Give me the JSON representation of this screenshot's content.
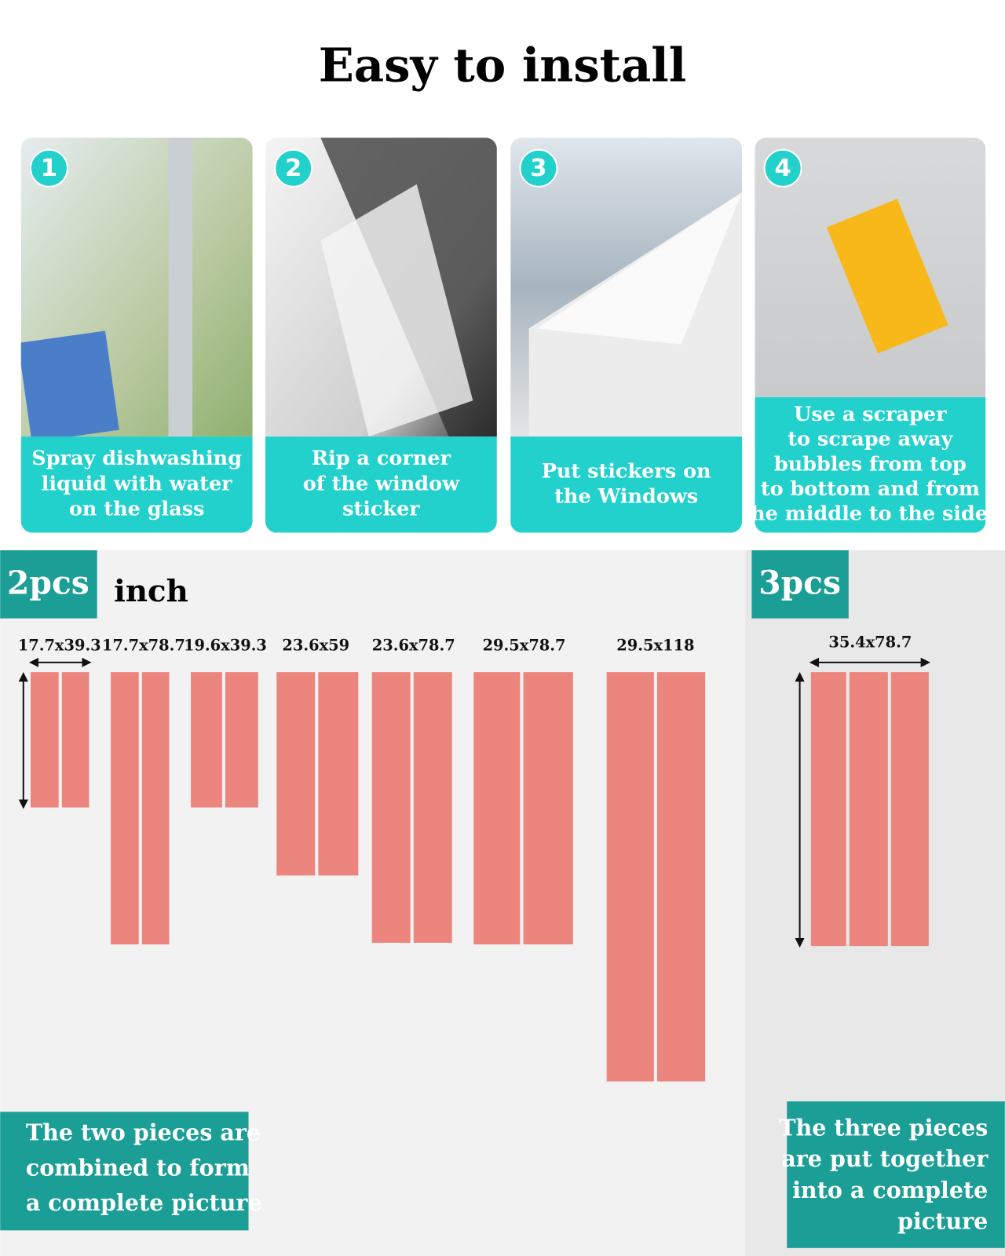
{
  "title": "Easy to install",
  "steps": [
    {
      "number": "1",
      "caption": [
        "Spray dishwashing",
        "liquid with water",
        "on the glass"
      ]
    },
    {
      "number": "2",
      "caption": [
        "Rip a corner",
        "of the window",
        "sticker"
      ]
    },
    {
      "number": "3",
      "caption": [
        "Put stickers on",
        "the Windows"
      ]
    },
    {
      "number": "4",
      "caption": [
        "Use a scraper",
        "to scrape away",
        "bubbles from top",
        "to bottom and from",
        "the middle to the sides"
      ]
    }
  ],
  "two_piece": {
    "label": "2pcs",
    "unit": "inch",
    "sizes": [
      "17.7x39.3",
      "17.7x78.7",
      "19.6x39.3",
      "23.6x59",
      "23.6x78.7",
      "29.5x78.7",
      "29.5x118"
    ],
    "caption": [
      "The two pieces are",
      "combined to form",
      "a complete picture"
    ]
  },
  "three_piece": {
    "label": "3pcs",
    "sizes": [
      "35.4x78.7"
    ],
    "caption": [
      "The three pieces",
      "are put together",
      "into a complete",
      "picture"
    ]
  }
}
